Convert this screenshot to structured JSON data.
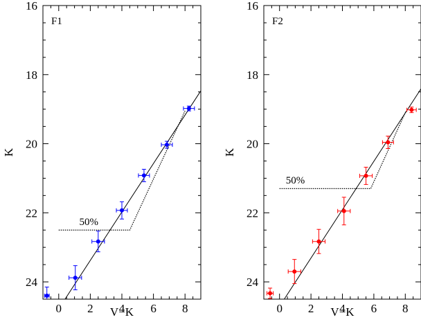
{
  "chart_data": [
    {
      "type": "scatter",
      "panel_label": "F1",
      "xlabel": "V−K",
      "ylabel": "K",
      "xlim": [
        -1,
        9
      ],
      "ylim": [
        24.5,
        16
      ],
      "x_ticks": [
        0,
        2,
        4,
        6,
        8
      ],
      "y_ticks": [
        16,
        18,
        20,
        22,
        24
      ],
      "color": "#0000ff",
      "series": [
        {
          "points": [
            {
              "x": -0.75,
              "y": 24.4,
              "xerr": 0.15,
              "yerr": 0.25
            },
            {
              "x": 1.05,
              "y": 23.88,
              "xerr": 0.4,
              "yerr": 0.35
            },
            {
              "x": 2.5,
              "y": 22.83,
              "xerr": 0.4,
              "yerr": 0.3
            },
            {
              "x": 4.0,
              "y": 21.93,
              "xerr": 0.35,
              "yerr": 0.25
            },
            {
              "x": 5.4,
              "y": 20.92,
              "xerr": 0.35,
              "yerr": 0.18
            },
            {
              "x": 6.85,
              "y": 20.03,
              "xerr": 0.35,
              "yerr": 0.1
            },
            {
              "x": 8.25,
              "y": 18.98,
              "xerr": 0.35,
              "yerr": 0.07
            }
          ]
        }
      ],
      "fit_line": {
        "x": [
          0.4,
          9.0
        ],
        "y": [
          24.5,
          18.47
        ]
      },
      "completeness": {
        "label": "50%",
        "label_pos": {
          "x": 1.3,
          "y": 22.35
        },
        "path": [
          {
            "x": 0.0,
            "y": 22.5
          },
          {
            "x": 4.5,
            "y": 22.5
          },
          {
            "x": 8.0,
            "y": 19.05
          }
        ]
      }
    },
    {
      "type": "scatter",
      "panel_label": "F2",
      "xlabel": "V−K",
      "ylabel": "K",
      "xlim": [
        -1,
        9
      ],
      "ylim": [
        24.5,
        16
      ],
      "x_ticks": [
        0,
        2,
        4,
        6,
        8
      ],
      "y_ticks": [
        16,
        18,
        20,
        22,
        24
      ],
      "color": "#ff0000",
      "series": [
        {
          "points": [
            {
              "x": -0.6,
              "y": 24.33,
              "xerr": 0.2,
              "yerr": 0.15
            },
            {
              "x": 0.95,
              "y": 23.7,
              "xerr": 0.4,
              "yerr": 0.35
            },
            {
              "x": 2.5,
              "y": 22.83,
              "xerr": 0.4,
              "yerr": 0.35
            },
            {
              "x": 4.1,
              "y": 21.95,
              "xerr": 0.4,
              "yerr": 0.4
            },
            {
              "x": 5.5,
              "y": 20.93,
              "xerr": 0.4,
              "yerr": 0.25
            },
            {
              "x": 6.9,
              "y": 19.96,
              "xerr": 0.35,
              "yerr": 0.18
            },
            {
              "x": 8.4,
              "y": 19.02,
              "xerr": 0.3,
              "yerr": 0.08
            }
          ]
        }
      ],
      "fit_line": {
        "x": [
          0.3,
          9.0
        ],
        "y": [
          24.5,
          18.41
        ]
      },
      "completeness": {
        "label": "50%",
        "label_pos": {
          "x": 0.4,
          "y": 21.15
        },
        "path": [
          {
            "x": 0.0,
            "y": 21.3
          },
          {
            "x": 5.8,
            "y": 21.3
          },
          {
            "x": 8.05,
            "y": 19.05
          }
        ]
      }
    }
  ]
}
